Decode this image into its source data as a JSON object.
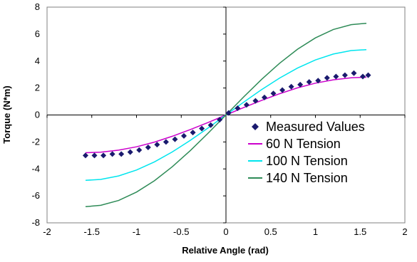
{
  "chart_data": {
    "type": "line",
    "title": "",
    "xlabel": "Relative Angle (rad)",
    "ylabel": "Torque (N*m)",
    "xlim": [
      -2,
      2
    ],
    "ylim": [
      -8,
      8
    ],
    "xticks": [
      -2,
      -1.5,
      -1,
      -0.5,
      0,
      0.5,
      1,
      1.5,
      2
    ],
    "xtick_labels": [
      "-2",
      "-1.5",
      "-1",
      "-0.5",
      "0",
      "0.5",
      "1",
      "1.5",
      "2"
    ],
    "yticks": [
      -8,
      -6,
      -4,
      -2,
      0,
      2,
      4,
      6,
      8
    ],
    "ytick_labels": [
      "-8",
      "-6",
      "-4",
      "-2",
      "0",
      "2",
      "4",
      "6",
      "8"
    ],
    "grid": false,
    "legend_position": "right",
    "series": [
      {
        "name": "Measured Values",
        "style": "markers",
        "marker": "diamond",
        "color": "#1a1a6e",
        "x": [
          -1.57,
          -1.47,
          -1.37,
          -1.27,
          -1.17,
          -1.07,
          -0.97,
          -0.87,
          -0.77,
          -0.67,
          -0.57,
          -0.47,
          -0.37,
          -0.27,
          -0.17,
          -0.07,
          0.03,
          0.13,
          0.23,
          0.33,
          0.43,
          0.53,
          0.63,
          0.73,
          0.83,
          0.93,
          1.03,
          1.13,
          1.23,
          1.33,
          1.43,
          1.53,
          1.59
        ],
        "y": [
          -3.0,
          -3.0,
          -3.0,
          -2.9,
          -2.9,
          -2.75,
          -2.6,
          -2.4,
          -2.2,
          -2.0,
          -1.8,
          -1.55,
          -1.3,
          -1.0,
          -0.75,
          -0.35,
          0.15,
          0.5,
          0.75,
          1.05,
          1.3,
          1.6,
          1.85,
          2.1,
          2.25,
          2.45,
          2.55,
          2.75,
          2.85,
          2.95,
          3.1,
          2.85,
          2.95
        ]
      },
      {
        "name": "60 N Tension",
        "style": "line",
        "color": "#cc00cc",
        "x": [
          -1.57,
          -1.4,
          -1.2,
          -1.0,
          -0.8,
          -0.6,
          -0.4,
          -0.2,
          0,
          0.2,
          0.4,
          0.6,
          0.8,
          1.0,
          1.2,
          1.4,
          1.57
        ],
        "y": [
          -2.8,
          -2.76,
          -2.61,
          -2.36,
          -2.01,
          -1.58,
          -1.09,
          -0.56,
          0,
          0.56,
          1.09,
          1.58,
          2.01,
          2.36,
          2.61,
          2.76,
          2.8
        ]
      },
      {
        "name": "100 N Tension",
        "style": "line",
        "color": "#00e5ee",
        "x": [
          -1.57,
          -1.4,
          -1.2,
          -1.0,
          -0.8,
          -0.6,
          -0.4,
          -0.2,
          0,
          0.2,
          0.4,
          0.6,
          0.8,
          1.0,
          1.2,
          1.4,
          1.57
        ],
        "y": [
          -4.85,
          -4.78,
          -4.52,
          -4.08,
          -3.48,
          -2.74,
          -1.89,
          -0.96,
          0,
          0.96,
          1.89,
          2.74,
          3.48,
          4.08,
          4.52,
          4.78,
          4.85
        ]
      },
      {
        "name": "140 N Tension",
        "style": "line",
        "color": "#2e8b57",
        "x": [
          -1.57,
          -1.4,
          -1.2,
          -1.0,
          -0.8,
          -0.6,
          -0.4,
          -0.2,
          0,
          0.2,
          0.4,
          0.6,
          0.8,
          1.0,
          1.2,
          1.4,
          1.57
        ],
        "y": [
          -6.8,
          -6.7,
          -6.34,
          -5.72,
          -4.88,
          -3.84,
          -2.65,
          -1.35,
          0,
          1.35,
          2.65,
          3.84,
          4.88,
          5.72,
          6.34,
          6.7,
          6.8
        ]
      }
    ]
  }
}
